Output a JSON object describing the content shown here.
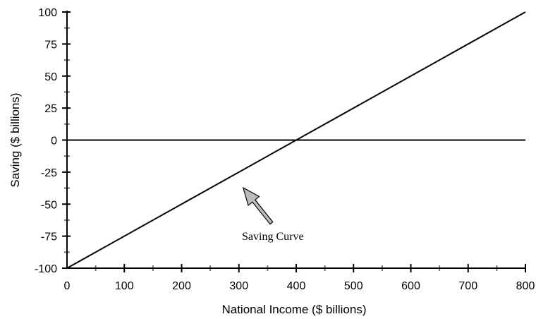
{
  "chart_data": {
    "type": "line",
    "title": "",
    "xlabel": "National Income ($ billions)",
    "ylabel": "Saving ($ billions)",
    "xlim": [
      0,
      800
    ],
    "ylim": [
      -100,
      100
    ],
    "x_ticks": [
      0,
      100,
      200,
      300,
      400,
      500,
      600,
      700,
      800
    ],
    "x_tick_labels": [
      "0",
      "100",
      "200",
      "300",
      "400",
      "500",
      "600",
      "700",
      "800"
    ],
    "y_ticks": [
      100,
      75,
      50,
      25,
      0,
      -25,
      -50,
      -75,
      -100
    ],
    "y_tick_labels": [
      "100",
      "75",
      "50",
      "25",
      "0",
      "-25",
      "-50",
      "-75",
      "-100"
    ],
    "grid": false,
    "series": [
      {
        "name": "Saving Curve",
        "x": [
          0,
          800
        ],
        "y": [
          -100,
          100
        ],
        "color": "#000000"
      }
    ],
    "reference_lines": [
      {
        "axis": "y",
        "value": 0
      }
    ],
    "annotations": [
      {
        "text": "Saving Curve",
        "arrow_to": {
          "x": 305,
          "y": -35
        }
      }
    ]
  }
}
